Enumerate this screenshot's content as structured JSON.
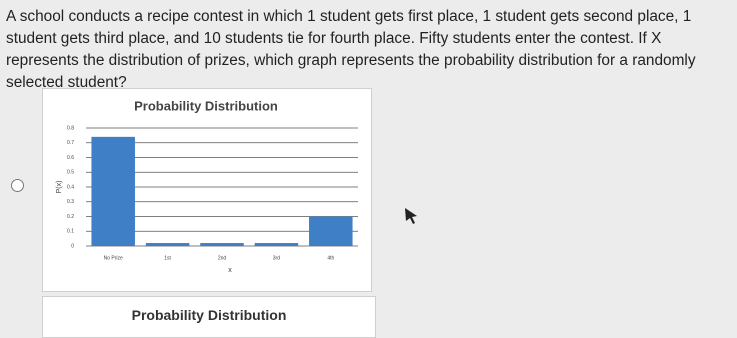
{
  "question": "A school conducts a recipe contest in which 1 student gets first place, 1 student gets second place, 1 student gets third place, and 10 students tie for fourth place. Fifty students enter the contest. If X represents the distribution of prizes, which graph represents the probability distribution for a randomly selected student?",
  "chart_data": {
    "type": "bar",
    "title": "Probability Distribution",
    "x_label": "x",
    "y_label": "P(x)",
    "categories": [
      "No Prize",
      "1st",
      "2nd",
      "3rd",
      "4th"
    ],
    "values": [
      0.74,
      0.02,
      0.02,
      0.02,
      0.2
    ],
    "color": "#3f7fc6",
    "ylim": [
      0,
      0.8
    ],
    "yticks": [
      0,
      0.1,
      0.2,
      0.3,
      0.4,
      0.5,
      0.6,
      0.7,
      0.8
    ],
    "grid": true
  },
  "option_b": {
    "title": "Probability Distribution"
  }
}
